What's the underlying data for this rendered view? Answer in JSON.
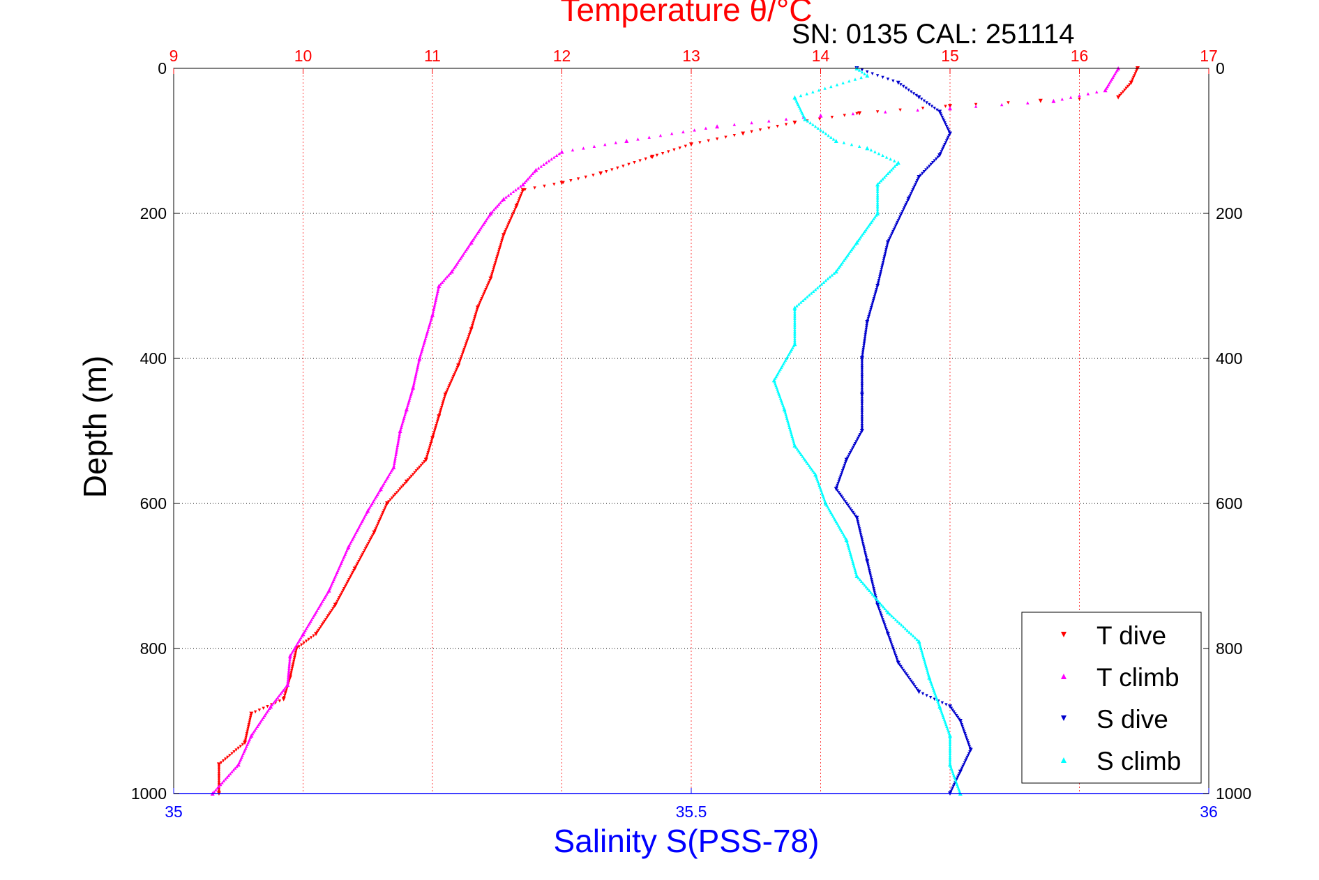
{
  "chart_data": {
    "type": "scatter",
    "title": "Temperature θ/°C",
    "subtitle": "SN: 0135  CAL: 251114",
    "xlabel_top": "Temperature θ/°C",
    "xlabel_bottom": "Salinity S(PSS-78)",
    "ylabel": "Depth (m)",
    "temperature_axis": {
      "range": [
        9,
        17
      ],
      "ticks": [
        "9",
        "10",
        "11",
        "12",
        "13",
        "14",
        "15",
        "16",
        "17"
      ],
      "color": "#ff0000"
    },
    "salinity_axis": {
      "range": [
        35,
        36
      ],
      "ticks": [
        "35",
        "35.5",
        "36"
      ],
      "color": "#0000ff"
    },
    "depth_axis": {
      "range": [
        0,
        1000
      ],
      "ticks": [
        "0",
        "200",
        "400",
        "600",
        "800",
        "1000"
      ],
      "reversed": true
    },
    "grid": true,
    "legend_position": "bottom-right",
    "series": [
      {
        "name": "T dive",
        "axis": "temperature",
        "color": "#ff0000",
        "marker": "triangle-down",
        "points": [
          [
            16.45,
            0
          ],
          [
            16.4,
            20
          ],
          [
            16.3,
            40
          ],
          [
            15.7,
            45
          ],
          [
            15.0,
            52
          ],
          [
            14.3,
            62
          ],
          [
            13.8,
            75
          ],
          [
            13.4,
            90
          ],
          [
            13.0,
            105
          ],
          [
            12.7,
            122
          ],
          [
            12.3,
            145
          ],
          [
            12.0,
            158
          ],
          [
            11.7,
            168
          ],
          [
            11.65,
            190
          ],
          [
            11.55,
            230
          ],
          [
            11.45,
            290
          ],
          [
            11.35,
            330
          ],
          [
            11.3,
            360
          ],
          [
            11.2,
            410
          ],
          [
            11.1,
            450
          ],
          [
            11.05,
            480
          ],
          [
            11.0,
            510
          ],
          [
            10.95,
            540
          ],
          [
            10.8,
            570
          ],
          [
            10.65,
            600
          ],
          [
            10.55,
            640
          ],
          [
            10.4,
            690
          ],
          [
            10.25,
            740
          ],
          [
            10.1,
            780
          ],
          [
            9.95,
            800
          ],
          [
            9.9,
            840
          ],
          [
            9.85,
            870
          ],
          [
            9.6,
            890
          ],
          [
            9.55,
            930
          ],
          [
            9.35,
            960
          ],
          [
            9.35,
            1000
          ]
        ]
      },
      {
        "name": "T climb",
        "axis": "temperature",
        "color": "#ff00ff",
        "marker": "triangle-up",
        "points": [
          [
            16.3,
            0
          ],
          [
            16.2,
            30
          ],
          [
            15.8,
            45
          ],
          [
            15.0,
            55
          ],
          [
            14.0,
            65
          ],
          [
            13.2,
            80
          ],
          [
            12.5,
            100
          ],
          [
            12.0,
            115
          ],
          [
            11.8,
            140
          ],
          [
            11.7,
            160
          ],
          [
            11.55,
            180
          ],
          [
            11.45,
            200
          ],
          [
            11.3,
            240
          ],
          [
            11.15,
            280
          ],
          [
            11.05,
            300
          ],
          [
            11.0,
            340
          ],
          [
            10.9,
            400
          ],
          [
            10.85,
            440
          ],
          [
            10.8,
            470
          ],
          [
            10.75,
            500
          ],
          [
            10.7,
            550
          ],
          [
            10.6,
            580
          ],
          [
            10.5,
            610
          ],
          [
            10.35,
            660
          ],
          [
            10.2,
            720
          ],
          [
            10.0,
            780
          ],
          [
            9.9,
            810
          ],
          [
            9.88,
            850
          ],
          [
            9.75,
            880
          ],
          [
            9.6,
            920
          ],
          [
            9.5,
            960
          ],
          [
            9.3,
            1000
          ]
        ]
      },
      {
        "name": "S dive",
        "axis": "salinity",
        "color": "#0000cc",
        "marker": "triangle-down",
        "points": [
          [
            35.66,
            0
          ],
          [
            35.7,
            20
          ],
          [
            35.72,
            40
          ],
          [
            35.74,
            60
          ],
          [
            35.75,
            90
          ],
          [
            35.74,
            120
          ],
          [
            35.72,
            150
          ],
          [
            35.71,
            180
          ],
          [
            35.69,
            240
          ],
          [
            35.68,
            300
          ],
          [
            35.67,
            350
          ],
          [
            35.665,
            400
          ],
          [
            35.665,
            450
          ],
          [
            35.665,
            500
          ],
          [
            35.65,
            540
          ],
          [
            35.64,
            580
          ],
          [
            35.66,
            620
          ],
          [
            35.67,
            680
          ],
          [
            35.68,
            740
          ],
          [
            35.69,
            780
          ],
          [
            35.7,
            820
          ],
          [
            35.72,
            860
          ],
          [
            35.75,
            880
          ],
          [
            35.76,
            900
          ],
          [
            35.77,
            940
          ],
          [
            35.76,
            970
          ],
          [
            35.75,
            1000
          ]
        ]
      },
      {
        "name": "S climb",
        "axis": "salinity",
        "color": "#00ffff",
        "marker": "triangle-up",
        "points": [
          [
            35.66,
            0
          ],
          [
            35.67,
            10
          ],
          [
            35.6,
            40
          ],
          [
            35.61,
            70
          ],
          [
            35.64,
            100
          ],
          [
            35.67,
            110
          ],
          [
            35.7,
            130
          ],
          [
            35.68,
            160
          ],
          [
            35.68,
            200
          ],
          [
            35.66,
            240
          ],
          [
            35.64,
            280
          ],
          [
            35.6,
            330
          ],
          [
            35.6,
            380
          ],
          [
            35.58,
            430
          ],
          [
            35.59,
            470
          ],
          [
            35.6,
            520
          ],
          [
            35.62,
            560
          ],
          [
            35.63,
            600
          ],
          [
            35.65,
            650
          ],
          [
            35.66,
            700
          ],
          [
            35.69,
            750
          ],
          [
            35.72,
            790
          ],
          [
            35.73,
            840
          ],
          [
            35.74,
            880
          ],
          [
            35.75,
            920
          ],
          [
            35.75,
            960
          ],
          [
            35.76,
            1000
          ]
        ]
      }
    ]
  }
}
